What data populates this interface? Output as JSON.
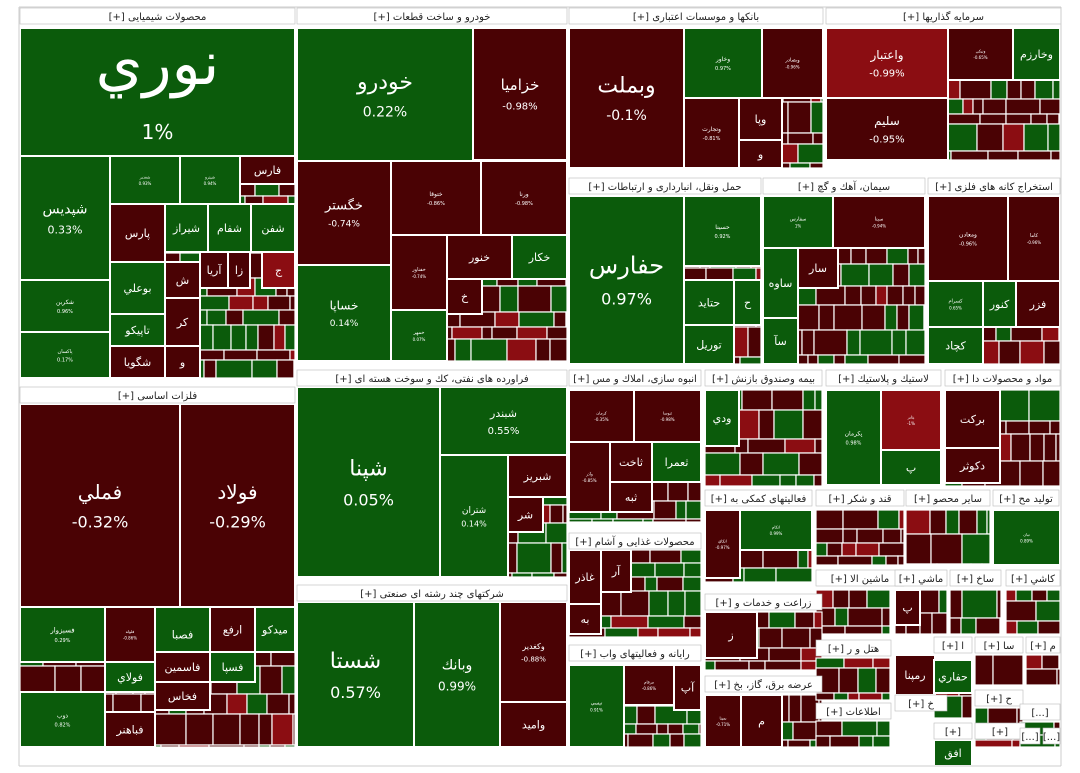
{
  "colors": {
    "positive": "#0b5b0b",
    "negative": "#4a0204",
    "strong_negative": "#8b0d12",
    "border": "#ffffff",
    "header_bg": "#ffffff",
    "header_text": "#222222"
  },
  "chart_data": {
    "type": "treemap",
    "title": "",
    "sectors": [
      {
        "name": "محصولات شیمیایی [+]",
        "tiles": [
          {
            "symbol": "نوري",
            "change": "1%",
            "value": 1.0
          },
          {
            "symbol": "شپديس",
            "change": "0.33%",
            "value": 0.33
          },
          {
            "symbol": "شكربن",
            "change": "0.96%",
            "value": 0.96
          },
          {
            "symbol": "پاكسان",
            "change": "0.17%",
            "value": 0.17
          },
          {
            "symbol": "شغدير",
            "change": "0.93%",
            "value": 0.93
          },
          {
            "symbol": "شپترو",
            "change": "0.94%",
            "value": 0.94
          },
          {
            "symbol": "فارس",
            "change": "",
            "value": -0.6
          },
          {
            "symbol": "پارس",
            "change": "",
            "value": -0.5
          },
          {
            "symbol": "شيراز",
            "change": "",
            "value": 0.5
          },
          {
            "symbol": "شفام",
            "change": "",
            "value": 0.5
          },
          {
            "symbol": "شفن",
            "change": "",
            "value": 0.4
          },
          {
            "symbol": "بوعلي",
            "change": "",
            "value": 0.4
          },
          {
            "symbol": "آريا",
            "change": "",
            "value": -0.4
          },
          {
            "symbol": "زا",
            "change": "",
            "value": -0.3
          },
          {
            "symbol": "ج",
            "change": "",
            "value": -1.0
          },
          {
            "symbol": "تاپيكو",
            "change": "",
            "value": 0.3
          },
          {
            "symbol": "شگويا",
            "change": "",
            "value": -0.3
          },
          {
            "symbol": "ش",
            "change": "",
            "value": -0.3
          },
          {
            "symbol": "كر",
            "change": "",
            "value": -0.3
          },
          {
            "symbol": "و",
            "change": "",
            "value": -0.3
          }
        ]
      },
      {
        "name": "خودرو و ساخت قطعات [+]",
        "tiles": [
          {
            "symbol": "خودرو",
            "change": "0.22%",
            "value": 0.22
          },
          {
            "symbol": "خزاميا",
            "change": "-0.98%",
            "value": -0.98
          },
          {
            "symbol": "خگستر",
            "change": "-0.74%",
            "value": -0.74
          },
          {
            "symbol": "ختوقا",
            "change": "-0.86%",
            "value": -0.86
          },
          {
            "symbol": "ورنا",
            "change": "-0.98%",
            "value": -0.98
          },
          {
            "symbol": "خساپا",
            "change": "0.14%",
            "value": 0.14
          },
          {
            "symbol": "خفناور",
            "change": "-0.74%",
            "value": -0.74
          },
          {
            "symbol": "خنور",
            "change": "",
            "value": -0.4
          },
          {
            "symbol": "خكار",
            "change": "",
            "value": 0.3
          },
          {
            "symbol": "خمهر",
            "change": "0.07%",
            "value": 0.07
          },
          {
            "symbol": "خ",
            "change": "",
            "value": -0.3
          }
        ]
      },
      {
        "name": "بانكها و موسسات اعتباری [+]",
        "tiles": [
          {
            "symbol": "وبملت",
            "change": "-0.1%",
            "value": -0.1
          },
          {
            "symbol": "وخاور",
            "change": "0.97%",
            "value": 0.97
          },
          {
            "symbol": "وبصادر",
            "change": "-0.96%",
            "value": -0.96
          },
          {
            "symbol": "وتجارت",
            "change": "-0.81%",
            "value": -0.81
          },
          {
            "symbol": "وپا",
            "change": "",
            "value": -0.3
          },
          {
            "symbol": "و",
            "change": "",
            "value": -0.3
          }
        ]
      },
      {
        "name": "سرمایه گذاریها [+]",
        "tiles": [
          {
            "symbol": "واعتبار",
            "change": "-0.99%",
            "value": -0.99
          },
          {
            "symbol": "سليم",
            "change": "-0.95%",
            "value": -0.95
          },
          {
            "symbol": "ونيكي",
            "change": "-0.65%",
            "value": -0.65
          },
          {
            "symbol": "وخارزم",
            "change": "",
            "value": 0.4
          }
        ]
      },
      {
        "name": "حمل ونقل، انبارداری و ارتباطات [+]",
        "tiles": [
          {
            "symbol": "حفارس",
            "change": "0.97%",
            "value": 0.97
          },
          {
            "symbol": "حسينا",
            "change": "0.92%",
            "value": 0.92
          },
          {
            "symbol": "حتايد",
            "change": "",
            "value": 0.3
          },
          {
            "symbol": "ح",
            "change": "",
            "value": 0.3
          },
          {
            "symbol": "توريل",
            "change": "",
            "value": 0.3
          }
        ]
      },
      {
        "name": "سيمان، آهك و گچ [+]",
        "tiles": [
          {
            "symbol": "سفارس",
            "change": "1%",
            "value": 1.0
          },
          {
            "symbol": "سيتا",
            "change": "-0.94%",
            "value": -0.94
          },
          {
            "symbol": "ساوه",
            "change": "",
            "value": 0.3
          },
          {
            "symbol": "سار",
            "change": "",
            "value": -0.4
          },
          {
            "symbol": "سآ",
            "change": "",
            "value": 0.3
          }
        ]
      },
      {
        "name": "استخراج كانه های فلزی [+]",
        "tiles": [
          {
            "symbol": "ومعادن",
            "change": "-0.96%",
            "value": -0.96
          },
          {
            "symbol": "كاما",
            "change": "-0.96%",
            "value": -0.96
          },
          {
            "symbol": "كسرام",
            "change": "0.65%",
            "value": 0.65
          },
          {
            "symbol": "كنور",
            "change": "",
            "value": 0.3
          },
          {
            "symbol": "فزر",
            "change": "",
            "value": -0.3
          },
          {
            "symbol": "كچاد",
            "change": "",
            "value": 0.3
          }
        ]
      },
      {
        "name": "فلزات اساسی [+]",
        "tiles": [
          {
            "symbol": "فملي",
            "change": "-0.32%",
            "value": -0.32
          },
          {
            "symbol": "فولاد",
            "change": "-0.29%",
            "value": -0.29
          },
          {
            "symbol": "فسبزوار",
            "change": "0.29%",
            "value": 0.29
          },
          {
            "symbol": "فلوله",
            "change": "-0.86%",
            "value": -0.86
          },
          {
            "symbol": "فصبا",
            "change": "",
            "value": 0.3
          },
          {
            "symbol": "ارفع",
            "change": "",
            "value": -0.3
          },
          {
            "symbol": "ميدكو",
            "change": "",
            "value": 0.3
          },
          {
            "symbol": "فاسمين",
            "change": "",
            "value": -0.3
          },
          {
            "symbol": "فسپا",
            "change": "",
            "value": 0.3
          },
          {
            "symbol": "فولاي",
            "change": "",
            "value": 0.3
          },
          {
            "symbol": "فخاس",
            "change": "",
            "value": -0.3
          },
          {
            "symbol": "ذوب",
            "change": "0.82%",
            "value": 0.82
          },
          {
            "symbol": "فباهنر",
            "change": "",
            "value": -0.3
          }
        ]
      },
      {
        "name": "فراورده های نفتی، كك و سوخت هسته ای [+]",
        "tiles": [
          {
            "symbol": "شپنا",
            "change": "0.05%",
            "value": 0.05
          },
          {
            "symbol": "شبندر",
            "change": "0.55%",
            "value": 0.55
          },
          {
            "symbol": "شتران",
            "change": "0.14%",
            "value": 0.14
          },
          {
            "symbol": "شبريز",
            "change": "",
            "value": -0.3
          },
          {
            "symbol": "شر",
            "change": "",
            "value": -0.3
          }
        ]
      },
      {
        "name": "شركتهای چند رشته ای صنعتی [+]",
        "tiles": [
          {
            "symbol": "شستا",
            "change": "0.57%",
            "value": 0.57
          },
          {
            "symbol": "وبانك",
            "change": "0.99%",
            "value": 0.99
          },
          {
            "symbol": "وكغدير",
            "change": "-0.88%",
            "value": -0.88
          },
          {
            "symbol": "واميد",
            "change": "",
            "value": -0.3
          }
        ]
      },
      {
        "name": "انبوه سازی، املاك و مس [+]",
        "tiles": [
          {
            "symbol": "كرمان",
            "change": "-0.35%",
            "value": -0.35
          },
          {
            "symbol": "ثنوسا",
            "change": "-0.98%",
            "value": -0.98
          },
          {
            "symbol": "ثاخت",
            "change": "",
            "value": -0.3
          },
          {
            "symbol": "ثعمرا",
            "change": "",
            "value": 0.3
          },
          {
            "symbol": "ثبه",
            "change": "",
            "value": -0.3
          },
          {
            "symbol": "وآذر",
            "change": "-0.85%",
            "value": -0.85
          }
        ]
      },
      {
        "name": "بيمه وصندوق بازنش [+]",
        "tiles": [
          {
            "symbol": "ودي",
            "change": "",
            "value": 0.3
          }
        ]
      },
      {
        "name": "لاستيك و پلاستيك [+]",
        "tiles": [
          {
            "symbol": "پكرمان",
            "change": "0.98%",
            "value": 0.98
          },
          {
            "symbol": "پتاير",
            "change": "-1%",
            "value": -1.0
          },
          {
            "symbol": "پ",
            "change": "",
            "value": 0.3
          }
        ]
      },
      {
        "name": "مواد و محصولات دا [+]",
        "tiles": [
          {
            "symbol": "بركت",
            "change": "",
            "value": -0.3
          },
          {
            "symbol": "دكوثر",
            "change": "",
            "value": -0.3
          }
        ]
      },
      {
        "name": "فعالیتهای كمكی به [+]",
        "tiles": [
          {
            "symbol": "اتكاي",
            "change": "-0.97%",
            "value": -0.97
          },
          {
            "symbol": "اتكام",
            "change": "0.99%",
            "value": 0.99
          }
        ]
      },
      {
        "name": "قند و شكر [+]",
        "tiles": []
      },
      {
        "name": "ساير محصو [+]",
        "tiles": []
      },
      {
        "name": "توليد مح [+]",
        "tiles": [
          {
            "symbol": "تيان",
            "change": "0.89%",
            "value": 0.89
          }
        ]
      },
      {
        "name": "محصولات غذایی و آشام [+]",
        "tiles": [
          {
            "symbol": "غاذر",
            "change": "",
            "value": -0.3
          },
          {
            "symbol": "آر",
            "change": "",
            "value": -0.3
          },
          {
            "symbol": "به",
            "change": "",
            "value": -0.3
          }
        ]
      },
      {
        "name": "ماشين الا [+]",
        "tiles": []
      },
      {
        "name": "ماشي [+]",
        "tiles": [
          {
            "symbol": "پ",
            "change": "",
            "value": -0.3
          }
        ]
      },
      {
        "name": "ساخ [+]",
        "tiles": []
      },
      {
        "name": "كاشي [+]",
        "tiles": []
      },
      {
        "name": "زراعت و خدمات و [+]",
        "tiles": [
          {
            "symbol": "ز",
            "change": "",
            "value": -0.3
          }
        ]
      },
      {
        "name": "رايانه و فعاليتهای واب [+]",
        "tiles": [
          {
            "symbol": "تيسي",
            "change": "0.91%",
            "value": 0.91
          },
          {
            "symbol": "مرقام",
            "change": "-0.86%",
            "value": -0.86
          },
          {
            "symbol": "آپ",
            "change": "",
            "value": -0.3
          }
        ]
      },
      {
        "name": "عرضه برق، گاز، بخ [+]",
        "tiles": [
          {
            "symbol": "بمپنا",
            "change": "-0.71%",
            "value": -0.71
          },
          {
            "symbol": "م",
            "change": "",
            "value": -0.3
          }
        ]
      },
      {
        "name": "هتل و ر [+]",
        "tiles": []
      },
      {
        "name": "اطلاعات [+]",
        "tiles": []
      },
      {
        "name": "خ [+]",
        "tiles": [
          {
            "symbol": "رمپنا",
            "change": "",
            "value": -0.3
          }
        ]
      },
      {
        "name": "ا [+]",
        "tiles": [
          {
            "symbol": "حفاري",
            "change": "",
            "value": 0.3
          }
        ]
      },
      {
        "name": "سا [+]",
        "tiles": []
      },
      {
        "name": "م [+]",
        "tiles": []
      },
      {
        "name": "ح [+]",
        "tiles": []
      },
      {
        "name": "[+]",
        "tiles": [
          {
            "symbol": "افق",
            "change": "",
            "value": 0.3
          }
        ]
      },
      {
        "name": "[+]",
        "tiles": []
      },
      {
        "name": "[...]",
        "tiles": []
      },
      {
        "name": "[...]",
        "tiles": []
      },
      {
        "name": "[...]",
        "tiles": []
      }
    ]
  }
}
